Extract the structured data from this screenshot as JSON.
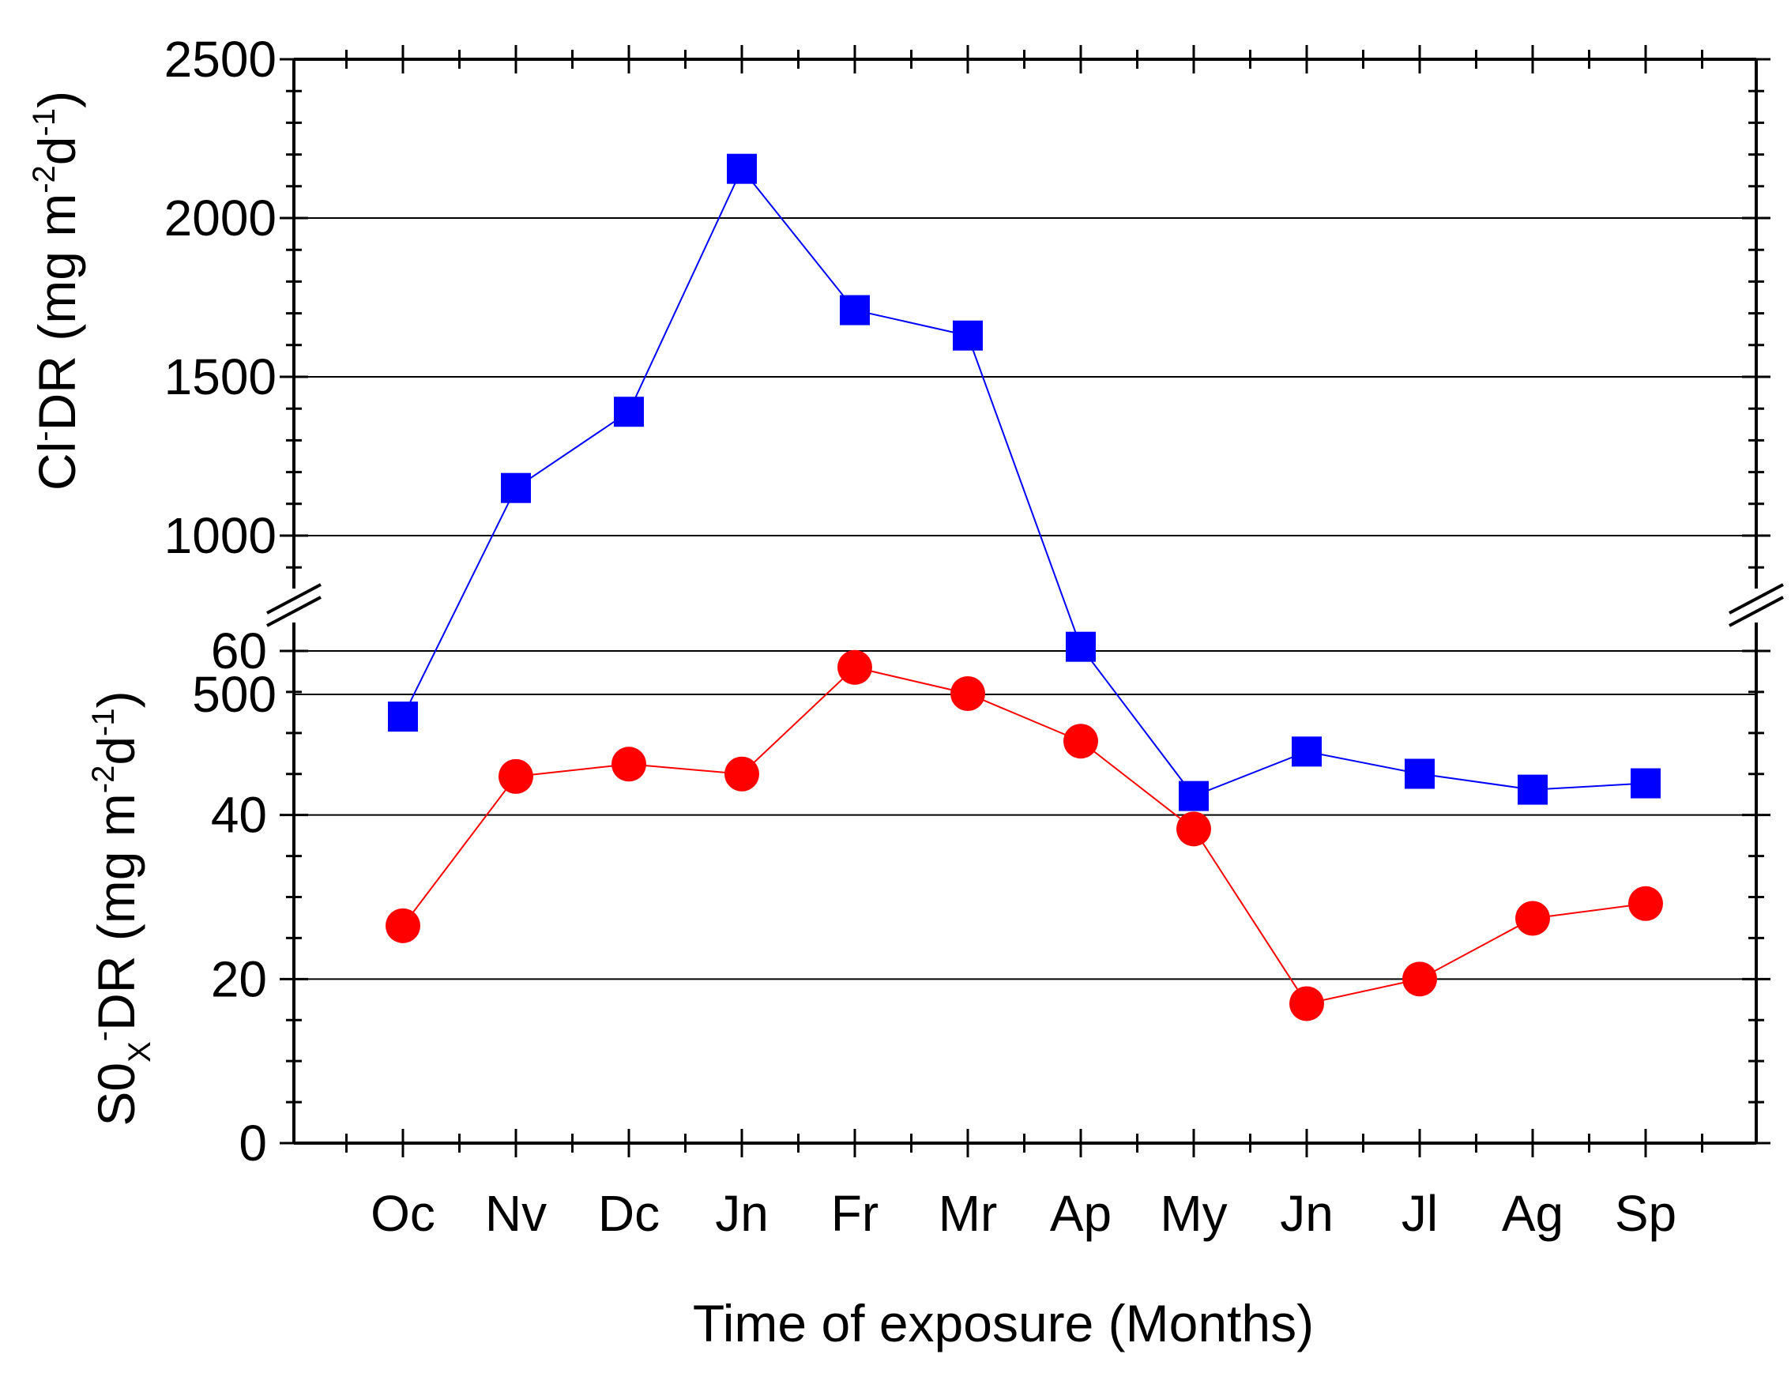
{
  "chart_data": {
    "type": "line",
    "layout": "two-panel stacked, shared x-axis, broken y-axis",
    "xlabel": "Time of exposure (Months)",
    "categories": [
      "Oc",
      "Nv",
      "Dc",
      "Jn",
      "Fr",
      "Mr",
      "Ap",
      "My",
      "Jn",
      "Jl",
      "Ag",
      "Sp"
    ],
    "panels": [
      {
        "name": "Cl- deposition rate",
        "ylabel_parts": {
          "main": "Cl",
          "sup1": "-",
          "rest": "DR (mg m",
          "sup2": "-2",
          "mid": "d",
          "sup3": "-1",
          "end": ")"
        },
        "ylim": [
          0,
          2500
        ],
        "yticks": [
          "500",
          "1000",
          "1500",
          "2000",
          "2500"
        ],
        "ytick_values": [
          500,
          1000,
          1500,
          2000,
          2500
        ],
        "grid_values": [
          500,
          1000,
          1500,
          2000
        ],
        "series": [
          {
            "name": "Cl- DR",
            "marker": "square",
            "color": "#0000ff",
            "values": [
              430,
              1150,
              1390,
              2155,
              1710,
              1630,
              650,
              180,
              320,
              250,
              200,
              220
            ]
          }
        ]
      },
      {
        "name": "SOx deposition rate",
        "ylabel_parts": {
          "main": "S0",
          "sub1": "X",
          "sup1": "-",
          "rest": "DR (mg m",
          "sup2": "-2",
          "mid": "d",
          "sup3": "-1",
          "end": ")"
        },
        "ylim": [
          0,
          65
        ],
        "yticks": [
          "0",
          "20",
          "40",
          "60"
        ],
        "ytick_values": [
          0,
          20,
          40,
          60
        ],
        "grid_values": [
          20,
          40,
          60
        ],
        "series": [
          {
            "name": "SOx- DR",
            "marker": "circle",
            "color": "#ff0000",
            "values": [
              26.5,
              44.7,
              46.2,
              45.0,
              58.0,
              54.8,
              49.0,
              38.3,
              17.0,
              20.0,
              27.4,
              29.2
            ]
          }
        ]
      }
    ]
  }
}
